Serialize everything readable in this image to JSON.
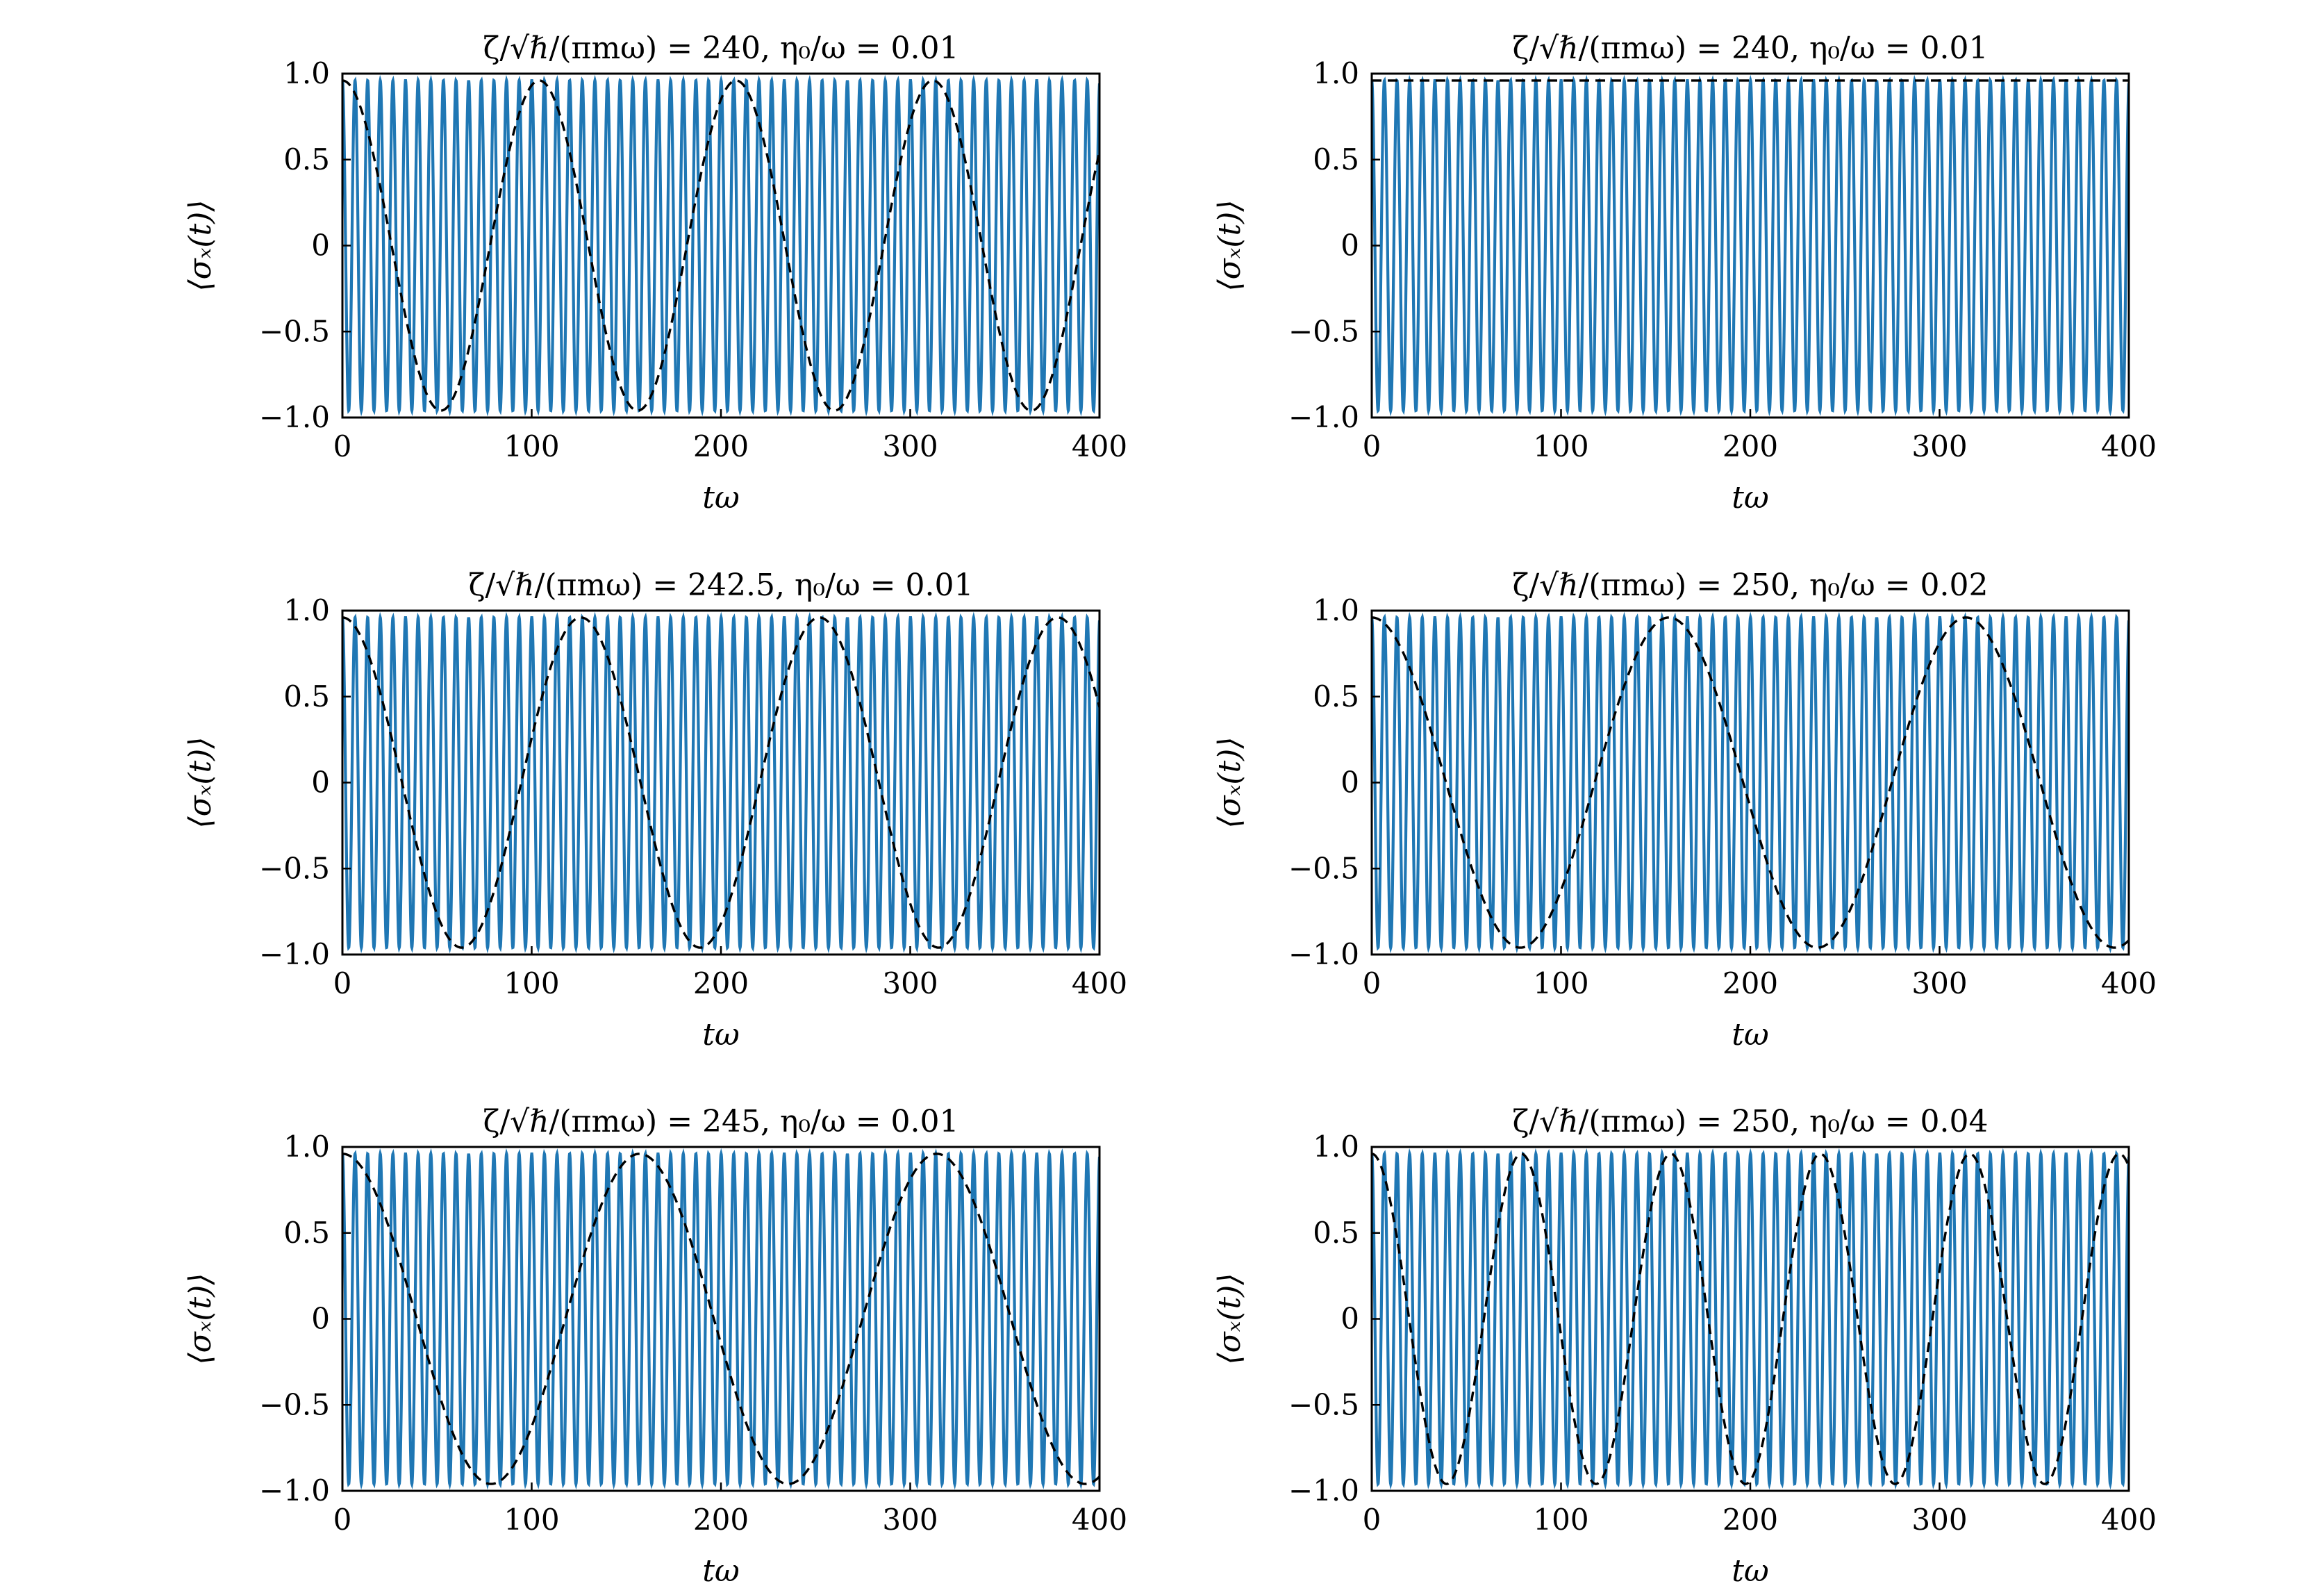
{
  "figure": {
    "colors": {
      "oscillation": "#1f77b4",
      "envelope": "#000000",
      "frame": "#000000"
    }
  },
  "chart_data": [
    {
      "type": "line",
      "title": "ζ/√ℏ/(πmω) = 240, η₀/ω = 0.01",
      "xlabel": "tω",
      "ylabel": "⟨σₓ(t)⟩",
      "xlim": [
        0,
        400
      ],
      "ylim": [
        -1.0,
        1.0
      ],
      "xticks": [
        0,
        100,
        200,
        300,
        400
      ],
      "xtick_labels": [
        "0",
        "100",
        "200",
        "300",
        "400"
      ],
      "yticks": [
        -1.0,
        -0.5,
        0,
        0.5,
        1.0
      ],
      "ytick_labels": [
        "−1.0",
        "−0.5",
        "0",
        "0.5",
        "1.0"
      ],
      "grid": false,
      "series": [
        {
          "style": "solid",
          "amplitude": 0.96,
          "period": 6.67,
          "phase": 0
        },
        {
          "style": "dashed",
          "amplitude": 0.96,
          "period": 104,
          "phase": 0
        }
      ]
    },
    {
      "type": "line",
      "title": "ζ/√ℏ/(πmω) = 240, η₀/ω = 0.01",
      "xlabel": "tω",
      "ylabel": "⟨σₓ(t)⟩",
      "xlim": [
        0,
        400
      ],
      "ylim": [
        -1.0,
        1.0
      ],
      "xticks": [
        0,
        100,
        200,
        300,
        400
      ],
      "xtick_labels": [
        "0",
        "100",
        "200",
        "300",
        "400"
      ],
      "yticks": [
        -1.0,
        -0.5,
        0,
        0.5,
        1.0
      ],
      "ytick_labels": [
        "−1.0",
        "−0.5",
        "0",
        "0.5",
        "1.0"
      ],
      "grid": false,
      "series": [
        {
          "style": "solid",
          "amplitude": 0.96,
          "period": 6.67,
          "phase": 0
        },
        {
          "style": "dashed",
          "amplitude": 0.96,
          "period": 0,
          "phase": 0
        }
      ]
    },
    {
      "type": "line",
      "title": "ζ/√ℏ/(πmω) = 242.5, η₀/ω = 0.01",
      "xlabel": "tω",
      "ylabel": "⟨σₓ(t)⟩",
      "xlim": [
        0,
        400
      ],
      "ylim": [
        -1.0,
        1.0
      ],
      "xticks": [
        0,
        100,
        200,
        300,
        400
      ],
      "xtick_labels": [
        "0",
        "100",
        "200",
        "300",
        "400"
      ],
      "yticks": [
        -1.0,
        -0.5,
        0,
        0.5,
        1.0
      ],
      "ytick_labels": [
        "−1.0",
        "−0.5",
        "0",
        "0.5",
        "1.0"
      ],
      "grid": false,
      "series": [
        {
          "style": "solid",
          "amplitude": 0.96,
          "period": 6.67,
          "phase": 0
        },
        {
          "style": "dashed",
          "amplitude": 0.96,
          "period": 126,
          "phase": 0
        }
      ]
    },
    {
      "type": "line",
      "title": "ζ/√ℏ/(πmω) = 250, η₀/ω = 0.02",
      "xlabel": "tω",
      "ylabel": "⟨σₓ(t)⟩",
      "xlim": [
        0,
        400
      ],
      "ylim": [
        -1.0,
        1.0
      ],
      "xticks": [
        0,
        100,
        200,
        300,
        400
      ],
      "xtick_labels": [
        "0",
        "100",
        "200",
        "300",
        "400"
      ],
      "yticks": [
        -1.0,
        -0.5,
        0,
        0.5,
        1.0
      ],
      "ytick_labels": [
        "−1.0",
        "−0.5",
        "0",
        "0.5",
        "1.0"
      ],
      "grid": false,
      "series": [
        {
          "style": "solid",
          "amplitude": 0.96,
          "period": 6.67,
          "phase": 0
        },
        {
          "style": "dashed",
          "amplitude": 0.96,
          "period": 157,
          "phase": 0
        }
      ]
    },
    {
      "type": "line",
      "title": "ζ/√ℏ/(πmω) = 245, η₀/ω = 0.01",
      "xlabel": "tω",
      "ylabel": "⟨σₓ(t)⟩",
      "xlim": [
        0,
        400
      ],
      "ylim": [
        -1.0,
        1.0
      ],
      "xticks": [
        0,
        100,
        200,
        300,
        400
      ],
      "xtick_labels": [
        "0",
        "100",
        "200",
        "300",
        "400"
      ],
      "yticks": [
        -1.0,
        -0.5,
        0,
        0.5,
        1.0
      ],
      "ytick_labels": [
        "−1.0",
        "−0.5",
        "0",
        "0.5",
        "1.0"
      ],
      "grid": false,
      "series": [
        {
          "style": "solid",
          "amplitude": 0.96,
          "period": 6.67,
          "phase": 0
        },
        {
          "style": "dashed",
          "amplitude": 0.96,
          "period": 157,
          "phase": 0
        }
      ]
    },
    {
      "type": "line",
      "title": "ζ/√ℏ/(πmω) = 250, η₀/ω = 0.04",
      "xlabel": "tω",
      "ylabel": "⟨σₓ(t)⟩",
      "xlim": [
        0,
        400
      ],
      "ylim": [
        -1.0,
        1.0
      ],
      "xticks": [
        0,
        100,
        200,
        300,
        400
      ],
      "xtick_labels": [
        "0",
        "100",
        "200",
        "300",
        "400"
      ],
      "yticks": [
        -1.0,
        -0.5,
        0,
        0.5,
        1.0
      ],
      "ytick_labels": [
        "−1.0",
        "−0.5",
        "0",
        "0.5",
        "1.0"
      ],
      "grid": false,
      "series": [
        {
          "style": "solid",
          "amplitude": 0.96,
          "period": 6.67,
          "phase": 0
        },
        {
          "style": "dashed",
          "amplitude": 0.96,
          "period": 79,
          "phase": 0
        }
      ]
    }
  ]
}
